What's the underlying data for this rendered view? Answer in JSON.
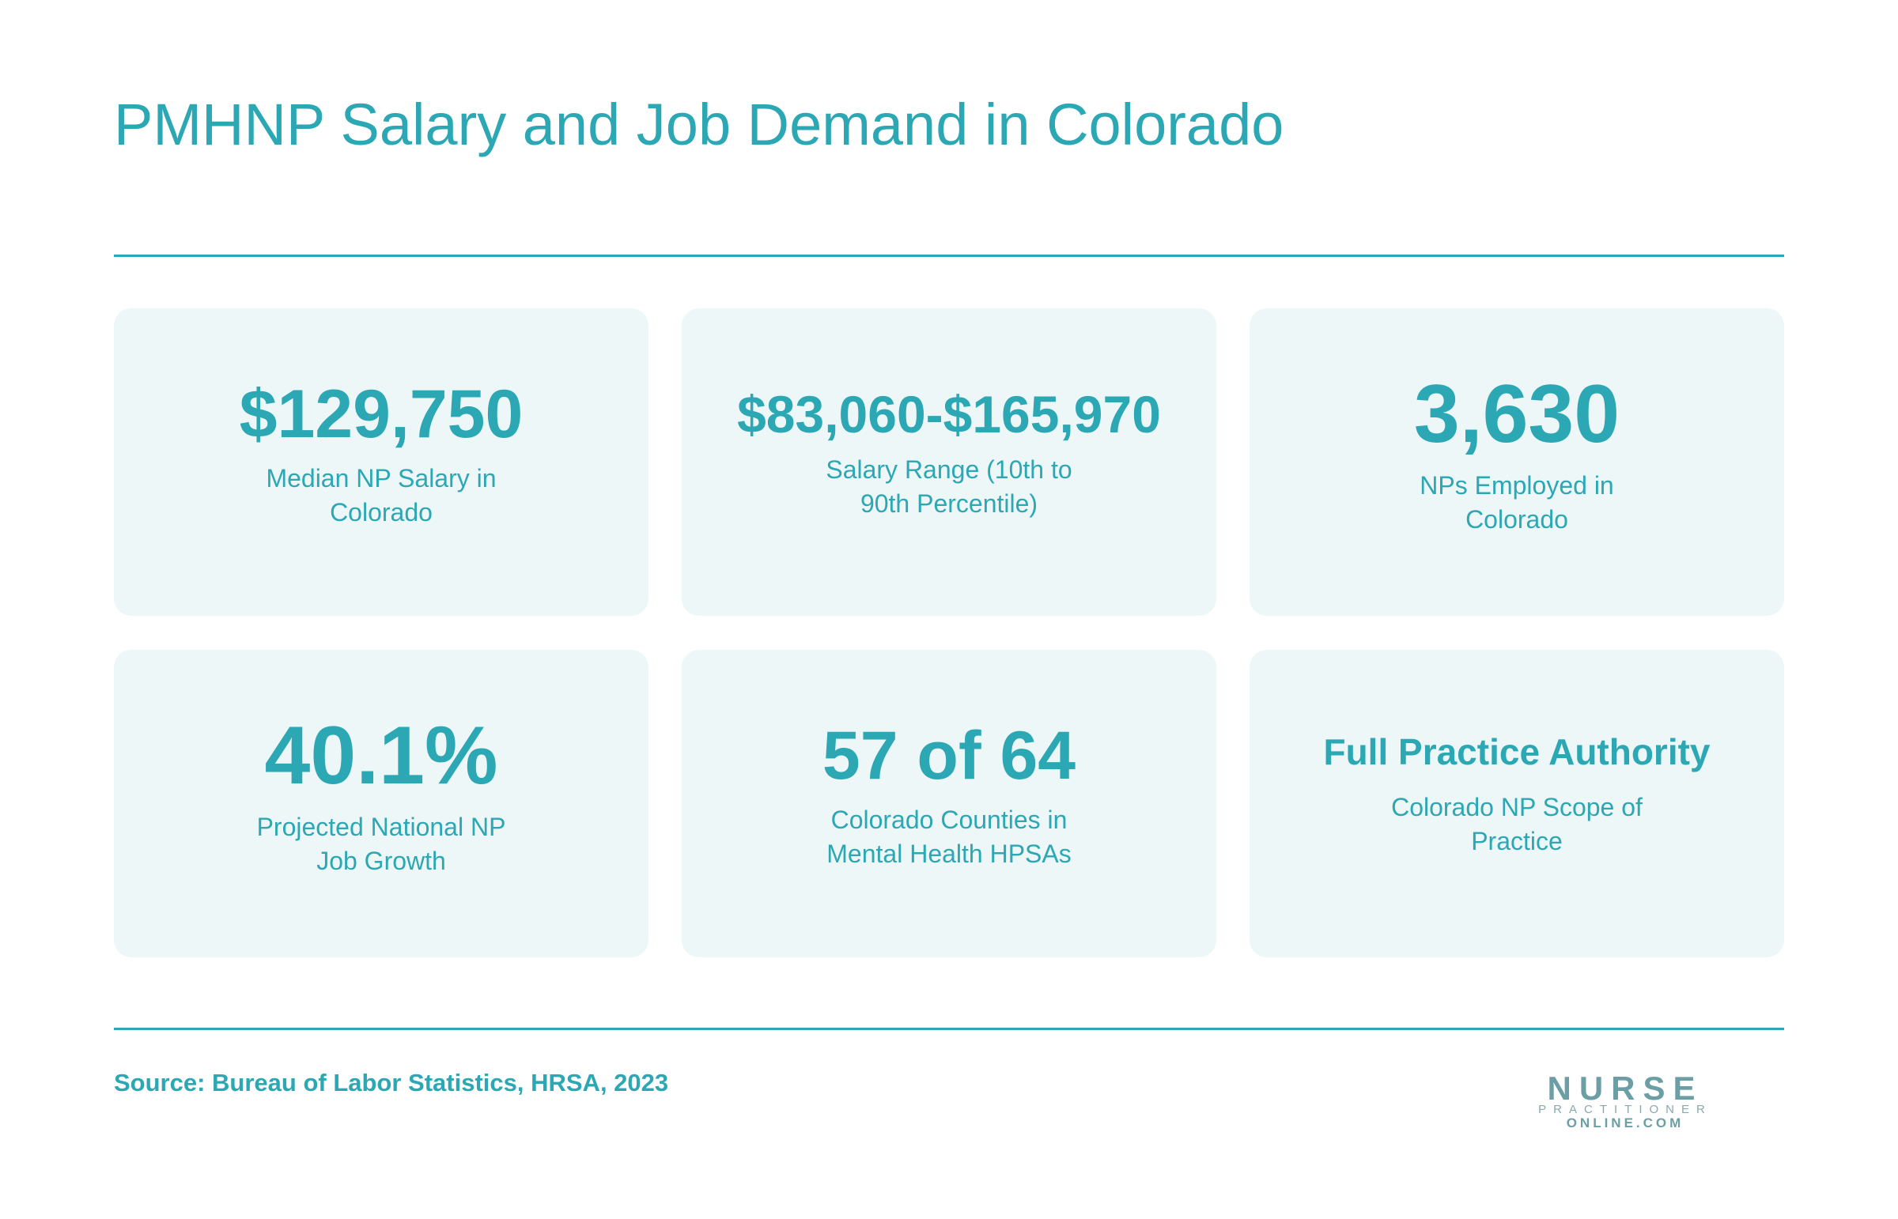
{
  "header": {
    "title": "PMHNP Salary and Job Demand in Colorado"
  },
  "stats": [
    {
      "value": "$129,750",
      "label": "Median NP Salary in Colorado"
    },
    {
      "value": "$83,060-$165,970",
      "label": "Salary Range (10th to 90th Percentile)"
    },
    {
      "value": "3,630",
      "label": "NPs Employed in Colorado"
    },
    {
      "value": "40.1%",
      "label": "Projected National NP Job Growth"
    },
    {
      "value": "57 of 64",
      "label": "Colorado Counties in Mental Health HPSAs"
    },
    {
      "value": "Full Practice Authority",
      "label": "Colorado NP Scope of Practice"
    }
  ],
  "footer": {
    "source": "Source: Bureau of Labor Statistics, HRSA, 2023",
    "logo": {
      "line1": "NURSE",
      "line2": "PRACTITIONER",
      "line3": "ONLINE.COM"
    }
  }
}
